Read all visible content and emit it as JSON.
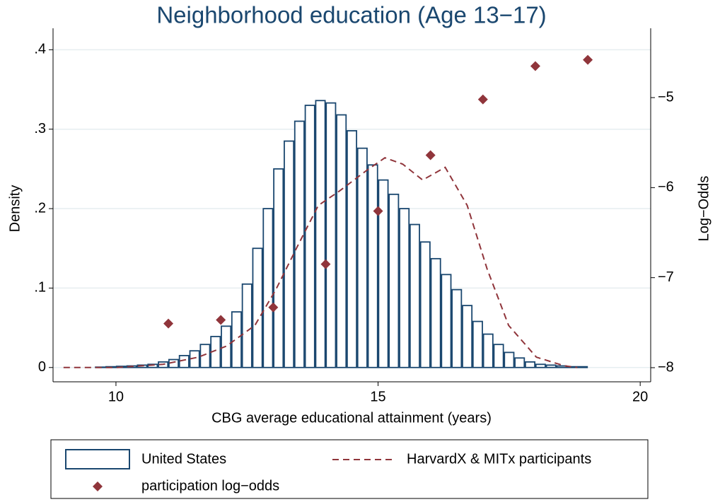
{
  "chart_data": {
    "type": "histogram",
    "title": "Neighborhood education (Age 13−17)",
    "xlabel": "CBG average educational attainment (years)",
    "ylabel": "Density",
    "y2label": "Log−Odds",
    "bins": [
      9.2,
      9.4,
      9.6,
      9.8,
      10.0,
      10.2,
      10.4,
      10.6,
      10.8,
      11.0,
      11.2,
      11.4,
      11.6,
      11.8,
      12.0,
      12.2,
      12.4,
      12.6,
      12.8,
      13.0,
      13.2,
      13.4,
      13.6,
      13.8,
      14.0,
      14.2,
      14.4,
      14.6,
      14.8,
      15.0,
      15.2,
      15.4,
      15.6,
      15.8,
      16.0,
      16.2,
      16.4,
      16.6,
      16.8,
      17.0,
      17.2,
      17.4,
      17.6,
      17.8,
      18.0,
      18.2,
      18.4,
      18.6,
      18.8,
      19.0
    ],
    "series": [
      {
        "name": "United States",
        "type": "histogram",
        "color": "#1a476f",
        "values": [
          0,
          0,
          0.0005,
          0.001,
          0.0015,
          0.002,
          0.003,
          0.004,
          0.007,
          0.01,
          0.015,
          0.021,
          0.029,
          0.039,
          0.052,
          0.07,
          0.105,
          0.15,
          0.2,
          0.25,
          0.285,
          0.31,
          0.33,
          0.336,
          0.333,
          0.318,
          0.298,
          0.276,
          0.255,
          0.236,
          0.218,
          0.2,
          0.18,
          0.158,
          0.137,
          0.117,
          0.098,
          0.078,
          0.058,
          0.042,
          0.029,
          0.019,
          0.012,
          0.007,
          0.004,
          0.003,
          0.002,
          0.001,
          0.001
        ]
      },
      {
        "name": "HarvardX & MITx participants",
        "type": "line",
        "color": "#90353b",
        "x": [
          9.0,
          10.0,
          10.9,
          11.57,
          12.11,
          12.65,
          13.05,
          13.45,
          13.86,
          14.26,
          14.8,
          15.13,
          15.47,
          15.85,
          16.28,
          16.7,
          17.08,
          17.49,
          18.02,
          18.56,
          18.8
        ],
        "values": [
          0,
          0,
          0.004,
          0.013,
          0.027,
          0.053,
          0.098,
          0.151,
          0.204,
          0.222,
          0.249,
          0.264,
          0.256,
          0.236,
          0.252,
          0.204,
          0.124,
          0.053,
          0.013,
          0.002,
          0
        ]
      },
      {
        "name": "participation log−odds",
        "type": "scatter",
        "color": "#90353b",
        "axis": "y2",
        "x": [
          11,
          12,
          13,
          14,
          15,
          16,
          17,
          18,
          19
        ],
        "values": [
          -7.51,
          -7.47,
          -7.33,
          -6.85,
          -6.26,
          -5.64,
          -5.02,
          -4.65,
          -4.58
        ]
      }
    ],
    "xlim": [
      8.8,
      20.2
    ],
    "ylim": [
      -0.018,
      0.427
    ],
    "y2lim": [
      -8.157,
      -4.23
    ],
    "xticks": [
      10,
      15,
      20
    ],
    "yticks": [
      0,
      {
        "value": 0.1,
        "label": ".1"
      },
      {
        "value": 0.2,
        "label": ".2"
      },
      {
        "value": 0.3,
        "label": ".3"
      },
      {
        "value": 0.4,
        "label": ".4"
      }
    ],
    "y2ticks": [
      {
        "value": -8,
        "label": "−8"
      },
      {
        "value": -7,
        "label": "−7"
      },
      {
        "value": -6,
        "label": "−6"
      },
      {
        "value": -5,
        "label": "−5"
      }
    ],
    "grid": true,
    "legend": "bottom"
  }
}
